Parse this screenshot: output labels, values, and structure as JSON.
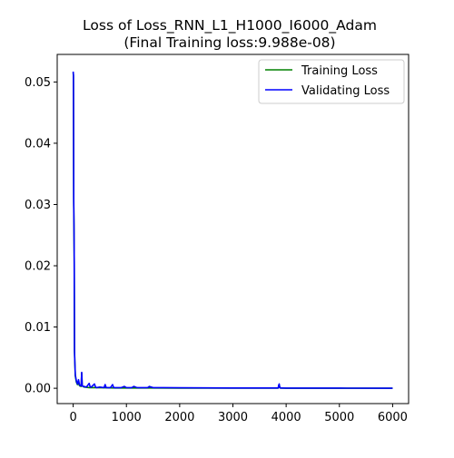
{
  "chart_data": {
    "type": "line",
    "title_line1": "Loss of Loss_RNN_L1_H1000_I6000_Adam",
    "title_line2": "(Final Training loss:9.988e-08)",
    "xlabel": "",
    "ylabel": "",
    "xlim": [
      -300,
      6300
    ],
    "ylim": [
      -0.0025,
      0.0545
    ],
    "xticks": [
      {
        "value": 0,
        "label": "0"
      },
      {
        "value": 1000,
        "label": "1000"
      },
      {
        "value": 2000,
        "label": "2000"
      },
      {
        "value": 3000,
        "label": "3000"
      },
      {
        "value": 4000,
        "label": "4000"
      },
      {
        "value": 5000,
        "label": "5000"
      },
      {
        "value": 6000,
        "label": "6000"
      }
    ],
    "yticks": [
      {
        "value": 0.0,
        "label": "0.00"
      },
      {
        "value": 0.01,
        "label": "0.01"
      },
      {
        "value": 0.02,
        "label": "0.02"
      },
      {
        "value": 0.03,
        "label": "0.03"
      },
      {
        "value": 0.04,
        "label": "0.04"
      },
      {
        "value": 0.05,
        "label": "0.05"
      }
    ],
    "grid": false,
    "legend_position": "top-right",
    "series": [
      {
        "name": "Training Loss",
        "color": "#008000",
        "x": [
          0,
          5,
          10,
          15,
          20,
          25,
          30,
          40,
          60,
          80,
          100,
          120,
          150,
          160,
          170,
          200,
          300,
          400,
          600,
          800,
          1000,
          1500,
          2000,
          3000,
          3850,
          3870,
          3890,
          4000,
          5000,
          6000
        ],
        "y": [
          0.0515,
          0.051,
          0.03,
          0.0265,
          0.0205,
          0.006,
          0.0045,
          0.002,
          0.001,
          0.0006,
          0.0008,
          0.0004,
          0.0003,
          0.0025,
          0.0004,
          0.0002,
          0.0001,
          0.0001,
          8e-05,
          5e-05,
          5e-05,
          4e-05,
          3e-05,
          2e-05,
          2e-05,
          0.0005,
          2e-05,
          1e-05,
          1e-05,
          1e-07
        ]
      },
      {
        "name": "Validating Loss",
        "color": "#0000ff",
        "x": [
          0,
          5,
          10,
          15,
          20,
          25,
          30,
          40,
          60,
          80,
          100,
          120,
          150,
          160,
          170,
          180,
          200,
          250,
          300,
          320,
          340,
          400,
          420,
          440,
          500,
          580,
          600,
          620,
          700,
          740,
          760,
          800,
          900,
          960,
          1000,
          1100,
          1140,
          1200,
          1300,
          1400,
          1430,
          1500,
          1700,
          2000,
          2500,
          3000,
          3500,
          3850,
          3860,
          3870,
          3880,
          3900,
          4000,
          5000,
          6000
        ],
        "y": [
          0.0517,
          0.0512,
          0.031,
          0.0268,
          0.0207,
          0.0062,
          0.0046,
          0.0022,
          0.0012,
          0.0007,
          0.0014,
          0.0005,
          0.0004,
          0.0026,
          0.0005,
          0.0003,
          0.0003,
          0.0002,
          0.0008,
          0.0002,
          0.0002,
          0.0007,
          0.0002,
          0.0001,
          0.0002,
          0.0001,
          0.0006,
          0.0001,
          0.0001,
          0.0006,
          0.0001,
          0.0001,
          0.0001,
          0.0003,
          0.0001,
          0.0001,
          0.0003,
          0.0001,
          0.0001,
          0.0001,
          0.0003,
          0.0001,
          0.0001,
          8e-05,
          6e-05,
          5e-05,
          4e-05,
          4e-05,
          0.0005,
          0.0007,
          0.0001,
          4e-05,
          3e-05,
          2e-05,
          1e-05
        ]
      }
    ]
  }
}
